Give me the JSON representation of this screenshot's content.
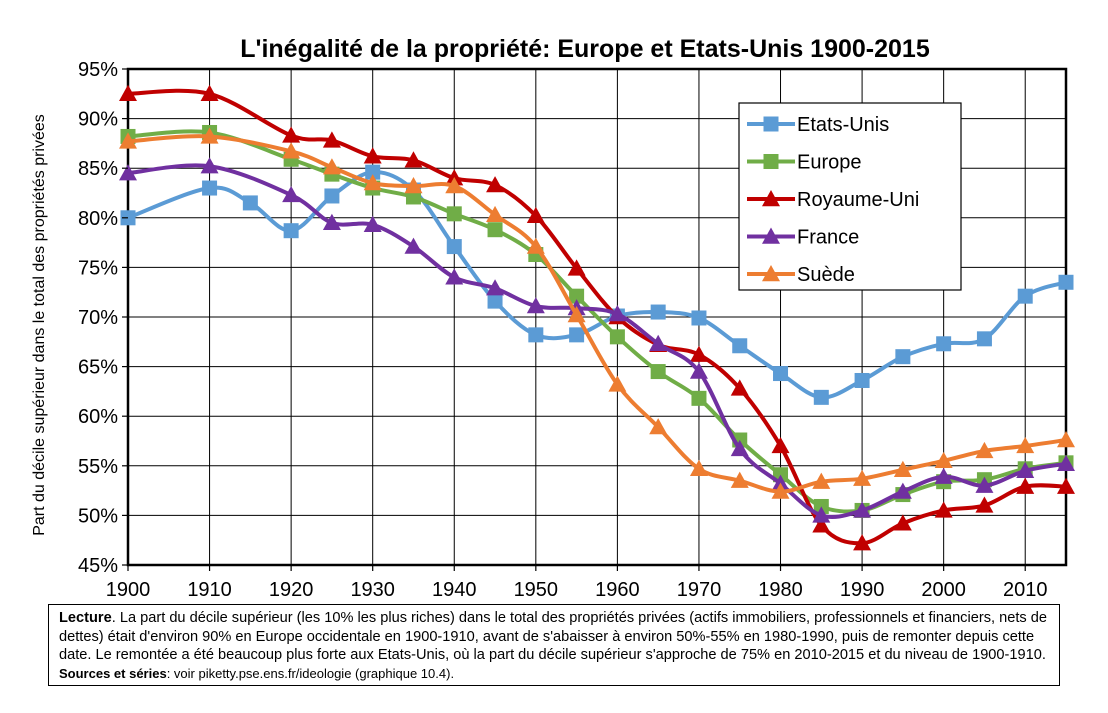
{
  "chart_data": {
    "type": "line",
    "title": "L'inégalité de la propriété: Europe et Etats-Unis 1900-2015",
    "ylabel": "Part du décile supérieur dans le total des propriétés privées",
    "xlabel": "",
    "xlim": [
      1900,
      2015
    ],
    "ylim": [
      0.45,
      0.95
    ],
    "x_ticks": [
      1900,
      1910,
      1920,
      1930,
      1940,
      1950,
      1960,
      1970,
      1980,
      1990,
      2000,
      2010
    ],
    "x_tick_labels": [
      "1900",
      "1910",
      "1920",
      "1930",
      "1940",
      "1950",
      "1960",
      "1970",
      "1980",
      "1990",
      "2000",
      "2010"
    ],
    "y_ticks": [
      0.45,
      0.5,
      0.55,
      0.6,
      0.65,
      0.7,
      0.75,
      0.8,
      0.85,
      0.9,
      0.95
    ],
    "y_tick_labels": [
      "45%",
      "50%",
      "55%",
      "60%",
      "65%",
      "70%",
      "75%",
      "80%",
      "85%",
      "90%",
      "95%"
    ],
    "grid": true,
    "legend_position": "top-right",
    "series": [
      {
        "name": "Etats-Unis",
        "color": "#5b9bd5",
        "marker": "square",
        "x": [
          1900,
          1910,
          1915,
          1920,
          1925,
          1930,
          1935,
          1940,
          1945,
          1950,
          1955,
          1960,
          1965,
          1970,
          1975,
          1980,
          1985,
          1990,
          1995,
          2000,
          2005,
          2010,
          2015
        ],
        "y": [
          0.8,
          0.83,
          0.815,
          0.787,
          0.822,
          0.846,
          0.828,
          0.771,
          0.716,
          0.682,
          0.682,
          0.701,
          0.705,
          0.699,
          0.671,
          0.643,
          0.619,
          0.636,
          0.66,
          0.673,
          0.678,
          0.721,
          0.735
        ]
      },
      {
        "name": "Europe",
        "color": "#70ad47",
        "marker": "square",
        "x": [
          1900,
          1910,
          1920,
          1925,
          1930,
          1935,
          1940,
          1945,
          1950,
          1955,
          1960,
          1965,
          1970,
          1975,
          1980,
          1985,
          1990,
          1995,
          2000,
          2005,
          2010,
          2015
        ],
        "y": [
          0.882,
          0.886,
          0.859,
          0.844,
          0.83,
          0.821,
          0.804,
          0.788,
          0.763,
          0.721,
          0.68,
          0.645,
          0.618,
          0.576,
          0.541,
          0.509,
          0.505,
          0.521,
          0.534,
          0.536,
          0.547,
          0.553
        ]
      },
      {
        "name": "Royaume-Uni",
        "color": "#c00000",
        "marker": "triangle",
        "x": [
          1900,
          1910,
          1920,
          1925,
          1930,
          1935,
          1940,
          1945,
          1950,
          1955,
          1960,
          1965,
          1970,
          1975,
          1980,
          1985,
          1990,
          1995,
          2000,
          2005,
          2010,
          2015
        ],
        "y": [
          0.925,
          0.925,
          0.883,
          0.878,
          0.862,
          0.858,
          0.84,
          0.833,
          0.802,
          0.749,
          0.7,
          0.672,
          0.662,
          0.628,
          0.57,
          0.49,
          0.472,
          0.492,
          0.505,
          0.51,
          0.529,
          0.529
        ]
      },
      {
        "name": "France",
        "color": "#7030a0",
        "marker": "triangle",
        "x": [
          1900,
          1910,
          1920,
          1925,
          1930,
          1935,
          1940,
          1945,
          1950,
          1955,
          1960,
          1965,
          1970,
          1975,
          1980,
          1985,
          1990,
          1995,
          2000,
          2005,
          2010,
          2015
        ],
        "y": [
          0.845,
          0.852,
          0.823,
          0.795,
          0.793,
          0.771,
          0.74,
          0.729,
          0.711,
          0.709,
          0.703,
          0.673,
          0.645,
          0.567,
          0.532,
          0.5,
          0.505,
          0.524,
          0.539,
          0.53,
          0.545,
          0.552
        ]
      },
      {
        "name": "Suède",
        "color": "#ed7d31",
        "marker": "triangle",
        "x": [
          1900,
          1910,
          1920,
          1925,
          1930,
          1935,
          1940,
          1945,
          1950,
          1955,
          1960,
          1965,
          1970,
          1975,
          1980,
          1985,
          1990,
          1995,
          2000,
          2005,
          2010,
          2015
        ],
        "y": [
          0.877,
          0.882,
          0.867,
          0.851,
          0.835,
          0.832,
          0.832,
          0.803,
          0.771,
          0.702,
          0.632,
          0.589,
          0.547,
          0.535,
          0.524,
          0.534,
          0.537,
          0.546,
          0.555,
          0.565,
          0.57,
          0.576
        ]
      }
    ]
  },
  "note": {
    "lead": "Lecture",
    "body": ". La part du décile supérieur (les 10% les plus riches) dans le total des propriétés privées (actifs immobiliers, professionnels et financiers, nets de dettes) était d'environ 90% en Europe occidentale en 1900-1910, avant de s'abaisser à environ 50%-55% en 1980-1990, puis de remonter depuis cette date. Le remontée a été beaucoup plus forte aux Etats-Unis, où la part du décile supérieur s'approche de 75% en 2010-2015 et du niveau de 1900-1910.  ",
    "sources_label": "Sources et séries",
    "sources_text": ": voir piketty.pse.ens.fr/ideologie (graphique 10.4)."
  }
}
